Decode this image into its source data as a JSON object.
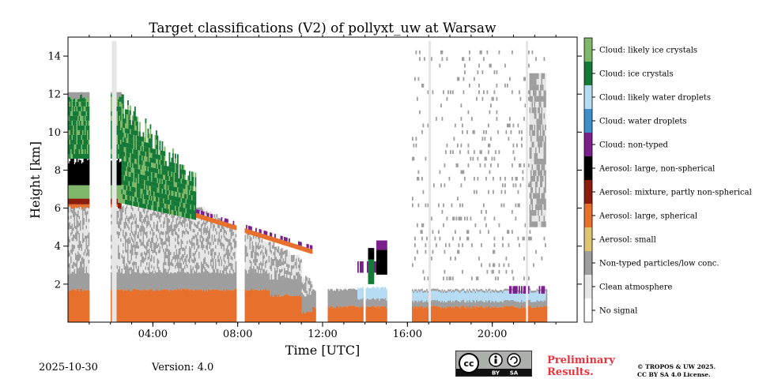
{
  "chart_data": {
    "type": "heatmap",
    "title": "Target classifications (V2) of pollyxt_uw at Warsaw",
    "xlabel": "Time [UTC]",
    "ylabel": "Height [km]",
    "xlim_hours": [
      0,
      24
    ],
    "ylim_km": [
      0,
      15
    ],
    "x_ticks": [
      {
        "value": 4,
        "label": "04:00"
      },
      {
        "value": 8,
        "label": "08:00"
      },
      {
        "value": 12,
        "label": "12:00"
      },
      {
        "value": 16,
        "label": "16:00"
      },
      {
        "value": 20,
        "label": "20:00"
      }
    ],
    "y_ticks": [
      {
        "value": 2,
        "label": "2"
      },
      {
        "value": 4,
        "label": "4"
      },
      {
        "value": 6,
        "label": "6"
      },
      {
        "value": 8,
        "label": "8"
      },
      {
        "value": 10,
        "label": "10"
      },
      {
        "value": 12,
        "label": "12"
      },
      {
        "value": 14,
        "label": "14"
      }
    ],
    "legend": [
      {
        "label": "Cloud: likely ice crystals",
        "color": "#7fb86a"
      },
      {
        "label": "Cloud: ice crystals",
        "color": "#157a38"
      },
      {
        "label": "Cloud: likely water droplets",
        "color": "#b6dcf4"
      },
      {
        "label": "Cloud: water droplets",
        "color": "#3f8ec9"
      },
      {
        "label": "Cloud: non-typed",
        "color": "#7a1f8c"
      },
      {
        "label": "Aerosol: large, non-spherical",
        "color": "#000000"
      },
      {
        "label": "Aerosol: mixture, partly non-spherical",
        "color": "#8c1d0d"
      },
      {
        "label": "Aerosol: large, spherical",
        "color": "#e8702d"
      },
      {
        "label": "Aerosol: small",
        "color": "#dfc472"
      },
      {
        "label": "Non-typed particles/low conc.",
        "color": "#9e9e9e"
      },
      {
        "label": "Clean atmosphere",
        "color": "#e6e6e6"
      },
      {
        "label": "No signal",
        "color": "#ffffff"
      }
    ],
    "data_gaps_utc": [
      [
        1.0,
        2.0
      ],
      [
        2.05,
        2.25
      ],
      [
        7.9,
        8.3
      ],
      [
        11.65,
        12.2
      ],
      [
        13.9,
        14.0
      ],
      [
        15.0,
        16.2
      ],
      [
        16.95,
        17.1
      ],
      [
        21.55,
        21.65
      ]
    ],
    "regions": [
      {
        "class": "Aerosol: large, spherical",
        "t": [
          0,
          22.5
        ],
        "z": [
          0,
          1.6
        ]
      },
      {
        "class": "Non-typed particles/low conc.",
        "t": [
          0,
          11
        ],
        "z": [
          1.6,
          5.5
        ]
      },
      {
        "class": "Cloud: ice crystals",
        "t": [
          0,
          6
        ],
        "z": [
          6.5,
          12
        ]
      },
      {
        "class": "Aerosol: large, non-spherical",
        "t": [
          0,
          2.5
        ],
        "z": [
          7.5,
          8.5
        ]
      },
      {
        "class": "Clean atmosphere",
        "t": [
          16.5,
          22.5
        ],
        "z": [
          2,
          14.5
        ]
      },
      {
        "class": "Cloud: likely water droplets",
        "t": [
          16.8,
          21.5
        ],
        "z": [
          1.0,
          2.2
        ]
      },
      {
        "class": "Cloud: non-typed",
        "t": [
          13.5,
          22
        ],
        "z": [
          1.5,
          4.5
        ]
      }
    ]
  },
  "footer": {
    "date": "2025-10-30",
    "version": "Version: 4.0",
    "preliminary_line1": "Preliminary",
    "preliminary_line2": "Results.",
    "license_line1": "© TROPOS & UW 2025.",
    "license_line2": "CC BY SA 4.0 License.",
    "cc_badge": {
      "cc": "cc",
      "by": "BY",
      "sa": "SA"
    }
  }
}
